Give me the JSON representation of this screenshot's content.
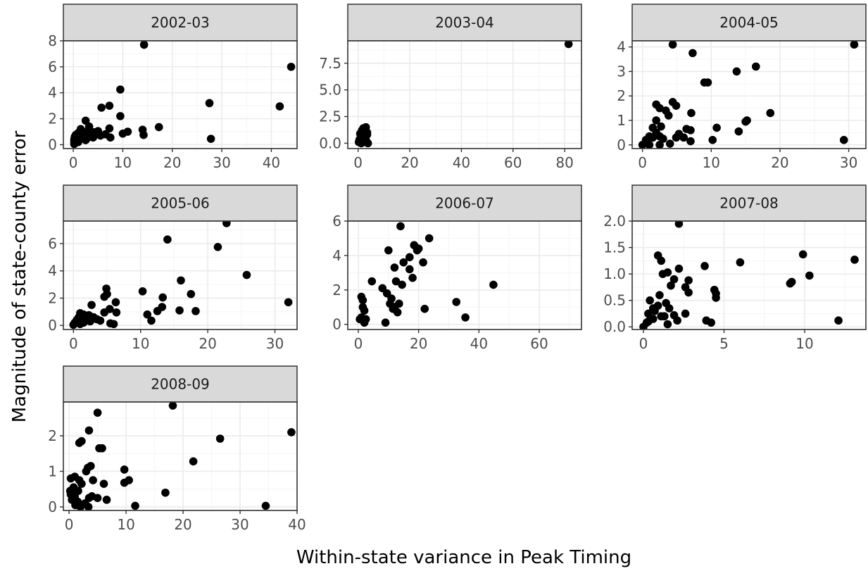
{
  "colors": {
    "panel_bg": "#ffffff",
    "grid_major": "#ebebeb",
    "grid_minor": "#f5f5f5",
    "strip_bg": "#d9d9d9",
    "border": "#333333",
    "point": "#000000"
  },
  "chart_data": {
    "type": "scatter",
    "xlabel": "Within-state variance in Peak Timing",
    "ylabel": "Magnitude of state-county error",
    "facets": [
      {
        "label": "2002-03",
        "xlim": [
          -2,
          45.2
        ],
        "ylim": [
          -0.3,
          8.0
        ],
        "xticks": [
          0,
          10,
          20,
          30,
          40
        ],
        "xtick_labels": [
          "0",
          "10",
          "20",
          "30",
          "40"
        ],
        "yticks": [
          0,
          2,
          4,
          6,
          8
        ],
        "ytick_labels": [
          "0",
          "2",
          "4",
          "6",
          "8"
        ],
        "points": [
          [
            14.3,
            7.7
          ],
          [
            44.0,
            6.0
          ],
          [
            9.5,
            4.25
          ],
          [
            27.5,
            3.2
          ],
          [
            41.7,
            2.95
          ],
          [
            7.3,
            3.0
          ],
          [
            5.7,
            2.85
          ],
          [
            9.5,
            2.2
          ],
          [
            2.5,
            1.85
          ],
          [
            17.3,
            1.35
          ],
          [
            14.0,
            1.15
          ],
          [
            11.0,
            1.0
          ],
          [
            10.0,
            0.85
          ],
          [
            7.3,
            1.25
          ],
          [
            5.0,
            1.05
          ],
          [
            4.3,
            0.95
          ],
          [
            3.5,
            1.05
          ],
          [
            2.0,
            1.0
          ],
          [
            1.0,
            0.9
          ],
          [
            0.5,
            0.75
          ],
          [
            0.3,
            0.6
          ],
          [
            0.2,
            0.4
          ],
          [
            0.2,
            0.2
          ],
          [
            0.2,
            0.05
          ],
          [
            1.0,
            0.2
          ],
          [
            1.5,
            0.5
          ],
          [
            2.0,
            0.7
          ],
          [
            2.5,
            0.35
          ],
          [
            3.0,
            0.6
          ],
          [
            3.5,
            0.8
          ],
          [
            4.0,
            0.55
          ],
          [
            5.5,
            0.7
          ],
          [
            6.5,
            0.8
          ],
          [
            7.5,
            0.55
          ],
          [
            14.2,
            0.75
          ],
          [
            27.8,
            0.45
          ],
          [
            1.5,
            1.2
          ],
          [
            2.7,
            0.45
          ],
          [
            3.2,
            1.4
          ],
          [
            0.8,
            0.55
          ]
        ]
      },
      {
        "label": "2003-04",
        "xlim": [
          -4,
          86.5
        ],
        "ylim": [
          -0.5,
          9.6
        ],
        "xticks": [
          0,
          20,
          40,
          60,
          80
        ],
        "xtick_labels": [
          "0",
          "20",
          "40",
          "60",
          "80"
        ],
        "yticks": [
          0,
          2.5,
          5,
          7.5
        ],
        "ytick_labels": [
          "0.0",
          "2.5",
          "5.0",
          "7.5"
        ],
        "points": [
          [
            81.5,
            9.3
          ],
          [
            1.5,
            1.2
          ],
          [
            2.0,
            1.4
          ],
          [
            2.5,
            0.9
          ],
          [
            3.0,
            1.5
          ],
          [
            3.5,
            0.8
          ],
          [
            1.0,
            0.6
          ],
          [
            0.5,
            0.3
          ],
          [
            0.3,
            0.1
          ],
          [
            1.2,
            0.0
          ],
          [
            2.2,
            0.3
          ],
          [
            2.8,
            0.5
          ],
          [
            3.2,
            0.2
          ],
          [
            3.8,
            0.0
          ],
          [
            1.8,
            0.7
          ],
          [
            0.8,
            0.9
          ],
          [
            2.5,
            1.1
          ],
          [
            3.5,
            1.0
          ],
          [
            1.5,
            0.4
          ],
          [
            2.0,
            0.1
          ]
        ]
      },
      {
        "label": "2004-05",
        "xlim": [
          -1.5,
          32.5
        ],
        "ylim": [
          -0.15,
          4.25
        ],
        "xticks": [
          0,
          10,
          20,
          30
        ],
        "xtick_labels": [
          "0",
          "10",
          "20",
          "30"
        ],
        "yticks": [
          0,
          1,
          2,
          3,
          4
        ],
        "ytick_labels": [
          "0",
          "1",
          "2",
          "3",
          "4"
        ],
        "points": [
          [
            4.4,
            4.1
          ],
          [
            30.8,
            4.1
          ],
          [
            7.3,
            3.75
          ],
          [
            16.5,
            3.2
          ],
          [
            13.7,
            3.0
          ],
          [
            9.5,
            2.55
          ],
          [
            9.0,
            2.55
          ],
          [
            4.4,
            1.75
          ],
          [
            4.9,
            1.6
          ],
          [
            2.0,
            1.65
          ],
          [
            2.5,
            1.5
          ],
          [
            3.4,
            1.4
          ],
          [
            7.1,
            1.3
          ],
          [
            18.6,
            1.3
          ],
          [
            15.2,
            1.0
          ],
          [
            15.0,
            0.95
          ],
          [
            3.8,
            1.2
          ],
          [
            2.0,
            1.0
          ],
          [
            1.5,
            0.7
          ],
          [
            2.7,
            0.75
          ],
          [
            6.4,
            0.65
          ],
          [
            7.0,
            0.6
          ],
          [
            10.8,
            0.7
          ],
          [
            14.0,
            0.55
          ],
          [
            5.3,
            0.45
          ],
          [
            4.9,
            0.3
          ],
          [
            2.5,
            0.35
          ],
          [
            3.0,
            0.25
          ],
          [
            1.0,
            0.35
          ],
          [
            1.5,
            0.3
          ],
          [
            0.5,
            0.2
          ],
          [
            0.0,
            0.0
          ],
          [
            1.0,
            0.0
          ],
          [
            2.5,
            0.0
          ],
          [
            4.0,
            0.05
          ],
          [
            6.0,
            0.3
          ],
          [
            7.0,
            0.15
          ],
          [
            10.2,
            0.2
          ],
          [
            29.3,
            0.2
          ],
          [
            2.0,
            0.5
          ]
        ]
      },
      {
        "label": "2005-06",
        "xlim": [
          -1.5,
          33.3
        ],
        "ylim": [
          -0.3,
          7.65
        ],
        "xticks": [
          0,
          10,
          20,
          30
        ],
        "xtick_labels": [
          "0",
          "10",
          "20",
          "30"
        ],
        "yticks": [
          0,
          2,
          4,
          6
        ],
        "ytick_labels": [
          "0",
          "2",
          "4",
          "6"
        ],
        "points": [
          [
            22.8,
            7.5
          ],
          [
            14.0,
            6.3
          ],
          [
            21.5,
            5.75
          ],
          [
            25.8,
            3.7
          ],
          [
            16.0,
            3.3
          ],
          [
            4.9,
            2.7
          ],
          [
            5.0,
            2.3
          ],
          [
            10.3,
            2.5
          ],
          [
            4.6,
            2.1
          ],
          [
            13.3,
            2.05
          ],
          [
            17.5,
            2.3
          ],
          [
            32.0,
            1.7
          ],
          [
            6.3,
            1.7
          ],
          [
            2.7,
            1.5
          ],
          [
            13.2,
            1.35
          ],
          [
            12.5,
            1.05
          ],
          [
            5.4,
            1.2
          ],
          [
            4.6,
            0.95
          ],
          [
            11.0,
            0.8
          ],
          [
            18.2,
            1.05
          ],
          [
            15.8,
            1.1
          ],
          [
            6.4,
            0.95
          ],
          [
            1.5,
            0.8
          ],
          [
            2.0,
            0.7
          ],
          [
            3.0,
            0.6
          ],
          [
            0.8,
            0.6
          ],
          [
            0.5,
            0.4
          ],
          [
            0.2,
            0.2
          ],
          [
            0.0,
            0.05
          ],
          [
            1.0,
            0.1
          ],
          [
            2.5,
            0.3
          ],
          [
            3.5,
            0.45
          ],
          [
            4.0,
            0.35
          ],
          [
            5.5,
            0.15
          ],
          [
            6.0,
            0.1
          ],
          [
            11.6,
            0.35
          ],
          [
            1.0,
            0.9
          ],
          [
            2.0,
            0.45
          ],
          [
            1.5,
            0.2
          ],
          [
            2.3,
            0.75
          ]
        ]
      },
      {
        "label": "2006-07",
        "xlim": [
          -3.5,
          74.0
        ],
        "ylim": [
          -0.3,
          6.0
        ],
        "xticks": [
          0,
          20,
          40,
          60
        ],
        "xtick_labels": [
          "0",
          "20",
          "40",
          "60"
        ],
        "yticks": [
          0,
          2,
          4,
          6
        ],
        "ytick_labels": [
          "0",
          "2",
          "4",
          "6"
        ],
        "points": [
          [
            14.0,
            5.7
          ],
          [
            23.5,
            5.0
          ],
          [
            18.5,
            4.6
          ],
          [
            20.0,
            4.4
          ],
          [
            19.5,
            4.3
          ],
          [
            10.0,
            4.3
          ],
          [
            17.0,
            3.9
          ],
          [
            21.5,
            3.6
          ],
          [
            12.0,
            3.3
          ],
          [
            17.0,
            3.2
          ],
          [
            18.0,
            2.7
          ],
          [
            15.0,
            3.6
          ],
          [
            4.5,
            2.5
          ],
          [
            8.0,
            2.1
          ],
          [
            12.5,
            2.5
          ],
          [
            14.5,
            2.3
          ],
          [
            44.8,
            2.3
          ],
          [
            9.5,
            1.8
          ],
          [
            11.0,
            1.5
          ],
          [
            12.0,
            1.0
          ],
          [
            32.5,
            1.3
          ],
          [
            13.5,
            1.2
          ],
          [
            22.0,
            0.9
          ],
          [
            35.5,
            0.4
          ],
          [
            9.0,
            0.1
          ],
          [
            1.0,
            1.6
          ],
          [
            1.5,
            1.0
          ],
          [
            2.0,
            0.8
          ],
          [
            1.0,
            0.4
          ],
          [
            0.5,
            0.3
          ],
          [
            2.0,
            0.1
          ],
          [
            2.5,
            0.3
          ],
          [
            1.5,
            1.4
          ],
          [
            10.5,
            1.2
          ],
          [
            13.0,
            0.7
          ],
          [
            11.5,
            0.9
          ]
        ]
      },
      {
        "label": "2007-08",
        "xlim": [
          -0.7,
          13.8
        ],
        "ylim": [
          -0.05,
          2.0
        ],
        "xticks": [
          0,
          5,
          10
        ],
        "xtick_labels": [
          "0",
          "5",
          "10"
        ],
        "yticks": [
          0,
          0.5,
          1.0,
          1.5,
          2.0
        ],
        "ytick_labels": [
          "0.0",
          "0.5",
          "1.0",
          "1.5",
          "2.0"
        ],
        "points": [
          [
            2.2,
            1.95
          ],
          [
            0.9,
            1.35
          ],
          [
            9.9,
            1.37
          ],
          [
            13.1,
            1.27
          ],
          [
            1.1,
            1.25
          ],
          [
            6.0,
            1.22
          ],
          [
            3.8,
            1.15
          ],
          [
            2.2,
            1.1
          ],
          [
            1.5,
            1.03
          ],
          [
            1.2,
            1.0
          ],
          [
            10.3,
            0.97
          ],
          [
            1.9,
            0.9
          ],
          [
            2.8,
            0.88
          ],
          [
            9.2,
            0.85
          ],
          [
            9.1,
            0.82
          ],
          [
            1.7,
            0.78
          ],
          [
            2.6,
            0.75
          ],
          [
            2.8,
            0.65
          ],
          [
            4.4,
            0.7
          ],
          [
            4.5,
            0.63
          ],
          [
            1.0,
            0.6
          ],
          [
            4.5,
            0.55
          ],
          [
            0.4,
            0.5
          ],
          [
            1.4,
            0.45
          ],
          [
            0.9,
            0.4
          ],
          [
            0.6,
            0.35
          ],
          [
            1.6,
            0.35
          ],
          [
            0.7,
            0.3
          ],
          [
            0.3,
            0.25
          ],
          [
            2.6,
            0.25
          ],
          [
            1.9,
            0.22
          ],
          [
            1.1,
            0.2
          ],
          [
            0.6,
            0.15
          ],
          [
            2.1,
            0.12
          ],
          [
            3.9,
            0.12
          ],
          [
            4.2,
            0.08
          ],
          [
            12.1,
            0.12
          ],
          [
            1.5,
            0.05
          ],
          [
            0.2,
            0.08
          ],
          [
            0.0,
            0.0
          ],
          [
            0.3,
            0.1
          ],
          [
            1.3,
            0.2
          ]
        ]
      },
      {
        "label": "2008-09",
        "xlim": [
          -1.0,
          40.0
        ],
        "ylim": [
          -0.1,
          2.95
        ],
        "xticks": [
          0,
          10,
          20,
          30,
          40
        ],
        "xtick_labels": [
          "0",
          "10",
          "20",
          "30",
          "40"
        ],
        "yticks": [
          0,
          1,
          2
        ],
        "ytick_labels": [
          "0",
          "1",
          "2"
        ],
        "points": [
          [
            18.2,
            2.85
          ],
          [
            5.0,
            2.65
          ],
          [
            39.0,
            2.1
          ],
          [
            3.5,
            2.15
          ],
          [
            26.5,
            1.92
          ],
          [
            2.2,
            1.85
          ],
          [
            1.8,
            1.8
          ],
          [
            5.8,
            1.65
          ],
          [
            5.3,
            1.65
          ],
          [
            21.8,
            1.28
          ],
          [
            3.8,
            1.15
          ],
          [
            3.3,
            1.1
          ],
          [
            9.7,
            1.05
          ],
          [
            3.0,
            1.0
          ],
          [
            1.0,
            0.85
          ],
          [
            0.3,
            0.8
          ],
          [
            1.8,
            0.75
          ],
          [
            10.5,
            0.75
          ],
          [
            9.7,
            0.68
          ],
          [
            6.1,
            0.65
          ],
          [
            2.2,
            0.65
          ],
          [
            0.8,
            0.55
          ],
          [
            0.2,
            0.45
          ],
          [
            1.6,
            0.45
          ],
          [
            16.9,
            0.4
          ],
          [
            0.3,
            0.35
          ],
          [
            1.0,
            0.3
          ],
          [
            4.0,
            0.3
          ],
          [
            0.5,
            0.2
          ],
          [
            3.5,
            0.25
          ],
          [
            5.0,
            0.25
          ],
          [
            6.6,
            0.2
          ],
          [
            1.5,
            0.15
          ],
          [
            2.8,
            0.1
          ],
          [
            1.1,
            0.05
          ],
          [
            2.0,
            0.0
          ],
          [
            3.4,
            0.0
          ],
          [
            11.6,
            0.03
          ],
          [
            34.5,
            0.03
          ],
          [
            4.2,
            0.75
          ]
        ]
      }
    ]
  }
}
